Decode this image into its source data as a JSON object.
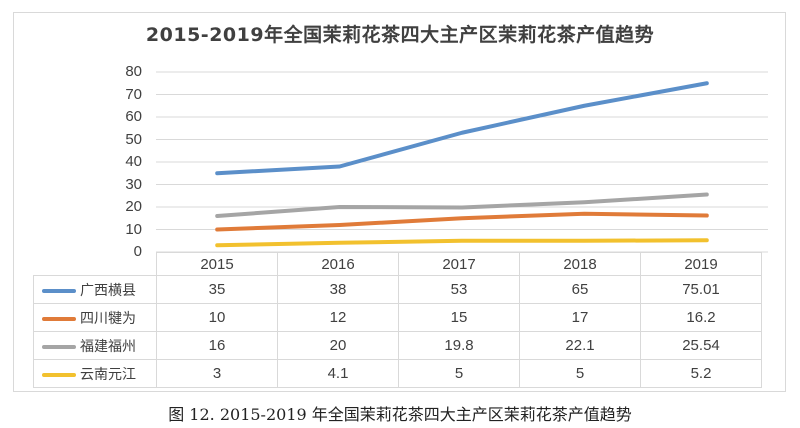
{
  "chart_data": {
    "type": "line",
    "title": "2015-2019年全国茉莉花茶四大主产区茉莉花茶产值趋势",
    "xlabel": "",
    "ylabel": "",
    "categories": [
      "2015",
      "2016",
      "2017",
      "2018",
      "2019"
    ],
    "ylim": [
      0,
      80
    ],
    "yticks": [
      "80",
      "70",
      "60",
      "50",
      "40",
      "30",
      "20",
      "10",
      "0"
    ],
    "ytick_values": [
      80,
      70,
      60,
      50,
      40,
      30,
      20,
      10,
      0
    ],
    "grid": true,
    "legend": "data-table",
    "series": [
      {
        "name": "广西横县",
        "color": "#5b8fc9",
        "values": [
          35,
          38,
          53,
          65,
          75.01
        ],
        "labels": [
          "35",
          "38",
          "53",
          "65",
          "75.01"
        ]
      },
      {
        "name": "四川犍为",
        "color": "#e07b39",
        "values": [
          10,
          12,
          15,
          17,
          16.2
        ],
        "labels": [
          "10",
          "12",
          "15",
          "17",
          "16.2"
        ]
      },
      {
        "name": "福建福州",
        "color": "#a5a5a5",
        "values": [
          16,
          20,
          19.8,
          22.1,
          25.54
        ],
        "labels": [
          "16",
          "20",
          "19.8",
          "22.1",
          "25.54"
        ]
      },
      {
        "name": "云南元江",
        "color": "#f2c12e",
        "values": [
          3,
          4.1,
          5,
          5,
          5.2
        ],
        "labels": [
          "3",
          "4.1",
          "5",
          "5",
          "5.2"
        ]
      }
    ]
  },
  "caption": "图 12. 2015-2019 年全国茉莉花茶四大主产区茉莉花茶产值趋势"
}
